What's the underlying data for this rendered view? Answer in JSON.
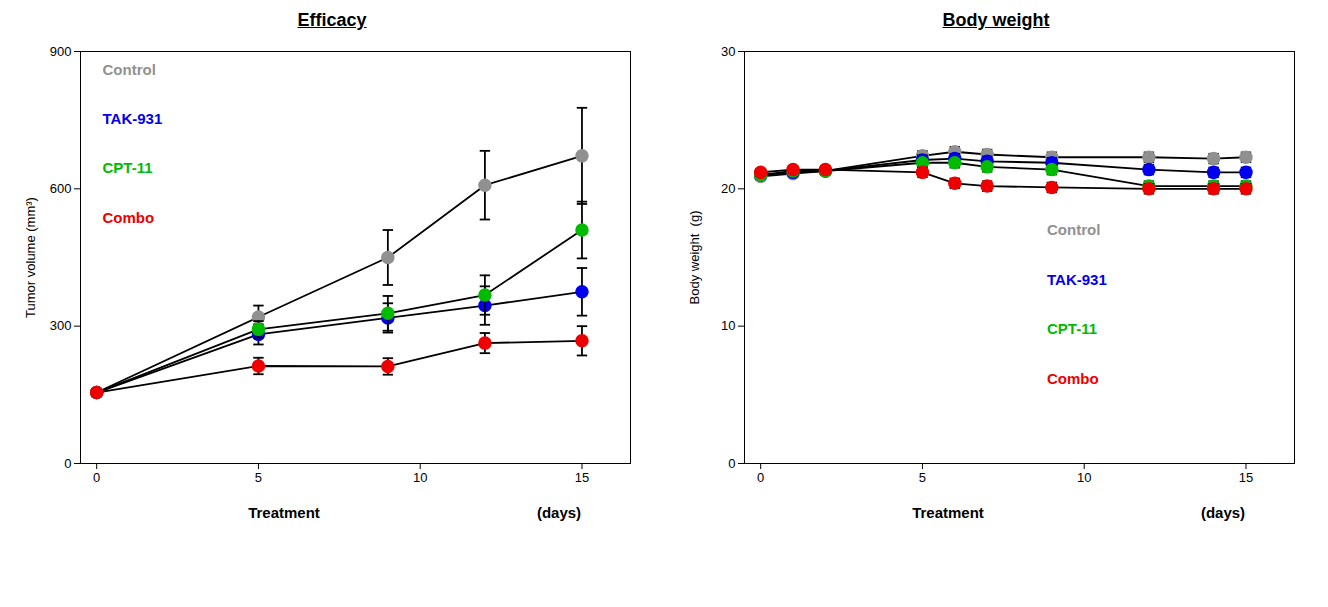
{
  "chart_data": [
    {
      "type": "line",
      "title": "Efficacy",
      "ylabel": "Tumor volume (mm³)",
      "annotations": [
        "Treatment",
        "(days)"
      ],
      "xlim": [
        -0.5,
        16.5
      ],
      "ylim": [
        0,
        900
      ],
      "xticks": [
        0,
        5,
        10,
        15
      ],
      "yticks": [
        0,
        300,
        600,
        900
      ],
      "legend": "upper left",
      "marker": "circle",
      "x": [
        0,
        5,
        9,
        12,
        15
      ],
      "series": [
        {
          "name": "Control",
          "color": "#909090",
          "values": [
            155,
            320,
            450,
            608,
            672
          ],
          "yerr": [
            8,
            25,
            60,
            75,
            105
          ]
        },
        {
          "name": "TAK-931",
          "color": "#0000EE",
          "values": [
            155,
            282,
            318,
            345,
            375
          ],
          "yerr": [
            8,
            22,
            32,
            42,
            52
          ]
        },
        {
          "name": "CPT-11",
          "color": "#00BB00",
          "values": [
            155,
            293,
            328,
            368,
            510
          ],
          "yerr": [
            8,
            18,
            38,
            43,
            62
          ]
        },
        {
          "name": "Combo",
          "color": "#EE0000",
          "values": [
            155,
            213,
            212,
            263,
            268
          ],
          "yerr": [
            8,
            18,
            18,
            22,
            32
          ]
        }
      ]
    },
    {
      "type": "line",
      "title": "Body weight",
      "ylabel": "Body weight  (g)",
      "annotations": [
        "Treatment",
        "(days)"
      ],
      "xlim": [
        -0.5,
        16.5
      ],
      "ylim": [
        0,
        30
      ],
      "xticks": [
        0,
        5,
        10,
        15
      ],
      "yticks": [
        0,
        10,
        20,
        30
      ],
      "legend": "center right",
      "marker": "circle",
      "x": [
        0,
        1,
        2,
        5,
        6,
        7,
        9,
        12,
        14,
        15
      ],
      "series": [
        {
          "name": "Control",
          "color": "#909090",
          "values": [
            20.9,
            21.1,
            21.3,
            22.4,
            22.7,
            22.5,
            22.3,
            22.3,
            22.2,
            22.3
          ],
          "yerr": [
            0.25,
            0.25,
            0.25,
            0.35,
            0.35,
            0.35,
            0.35,
            0.35,
            0.35,
            0.35
          ]
        },
        {
          "name": "TAK-931",
          "color": "#0000EE",
          "values": [
            21.0,
            21.2,
            21.3,
            22.1,
            22.2,
            22.0,
            21.9,
            21.4,
            21.2,
            21.2
          ],
          "yerr": [
            0.25,
            0.25,
            0.25,
            0.35,
            0.35,
            0.35,
            0.35,
            0.35,
            0.35,
            0.35
          ]
        },
        {
          "name": "CPT-11",
          "color": "#00BB00",
          "values": [
            21.0,
            21.3,
            21.3,
            21.9,
            21.9,
            21.6,
            21.4,
            20.2,
            20.2,
            20.2
          ],
          "yerr": [
            0.25,
            0.25,
            0.25,
            0.35,
            0.35,
            0.35,
            0.35,
            0.35,
            0.35,
            0.35
          ]
        },
        {
          "name": "Combo",
          "color": "#EE0000",
          "values": [
            21.2,
            21.4,
            21.4,
            21.2,
            20.4,
            20.2,
            20.1,
            20.0,
            20.0,
            20.0
          ],
          "yerr": [
            0.25,
            0.25,
            0.25,
            0.35,
            0.35,
            0.35,
            0.35,
            0.35,
            0.35,
            0.35
          ]
        }
      ]
    }
  ]
}
